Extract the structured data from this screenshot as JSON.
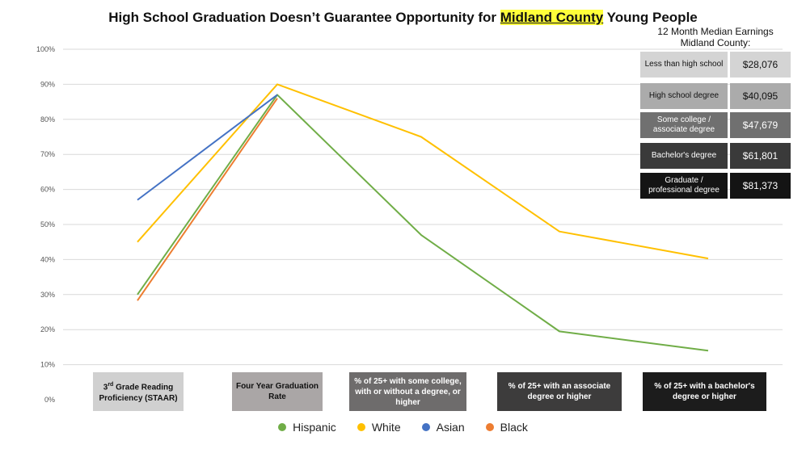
{
  "title": {
    "before": "High School Graduation Doesn’t Guarantee Opportunity for ",
    "highlight": "Midland County",
    "after": " Young People"
  },
  "chart_data": {
    "type": "line",
    "categories": [
      "3rd Grade Reading Proficiency (STAAR)",
      "Four Year Graduation Rate",
      "% of 25+ with some college, with or without a degree, or higher",
      "% of 25+ with an associate degree or higher",
      "% of 25+ with a bachelor's degree or higher"
    ],
    "category_display": [
      {
        "sup_prefix": "3",
        "sup": "rd",
        "rest": " Grade Reading Proficiency (STAAR)",
        "bg": "#d0d0d0",
        "color": "#111111"
      },
      {
        "sup_prefix": "",
        "sup": "",
        "rest": "Four Year Graduation Rate",
        "bg": "#aaa6a6",
        "color": "#111111"
      },
      {
        "sup_prefix": "",
        "sup": "",
        "rest": "% of 25+ with some college, with or without a degree, or higher",
        "bg": "#6e6c6c",
        "color": "#ffffff"
      },
      {
        "sup_prefix": "",
        "sup": "",
        "rest": "% of 25+ with an associate degree or higher",
        "bg": "#3d3c3c",
        "color": "#ffffff"
      },
      {
        "sup_prefix": "",
        "sup": "",
        "rest": "% of 25+ with a bachelor's degree or higher",
        "bg": "#1c1c1c",
        "color": "#ffffff"
      }
    ],
    "series": [
      {
        "name": "Hispanic",
        "color": "#70ad47",
        "values": [
          30,
          87,
          47,
          19.5,
          14
        ]
      },
      {
        "name": "White",
        "color": "#ffc000",
        "values": [
          45,
          90,
          75,
          48,
          40.3
        ]
      },
      {
        "name": "Asian",
        "color": "#4472c4",
        "values": [
          57,
          87,
          null,
          null,
          null
        ]
      },
      {
        "name": "Black",
        "color": "#ed7d31",
        "values": [
          28.3,
          86,
          null,
          null,
          null
        ]
      }
    ],
    "yticks": [
      "0%",
      "10%",
      "20%",
      "30%",
      "40%",
      "50%",
      "60%",
      "70%",
      "80%",
      "90%",
      "100%"
    ],
    "ylim": [
      0,
      100
    ],
    "grid": true,
    "legend_position": "bottom"
  },
  "earnings": {
    "heading_line1": "12 Month Median Earnings",
    "heading_line2": "Midland County:",
    "rows": [
      {
        "label": "Less than high school",
        "value": "$28,076",
        "bg": "#d4d4d4",
        "color": "#111111"
      },
      {
        "label": "High school degree",
        "value": "$40,095",
        "bg": "#ababab",
        "color": "#111111"
      },
      {
        "label": "Some college / associate degree",
        "value": "$47,679",
        "bg": "#707070",
        "color": "#ffffff"
      },
      {
        "label": "Bachelor's degree",
        "value": "$61,801",
        "bg": "#3a3a3a",
        "color": "#ffffff"
      },
      {
        "label": "Graduate / professional degree",
        "value": "$81,373",
        "bg": "#141414",
        "color": "#ffffff"
      }
    ]
  }
}
